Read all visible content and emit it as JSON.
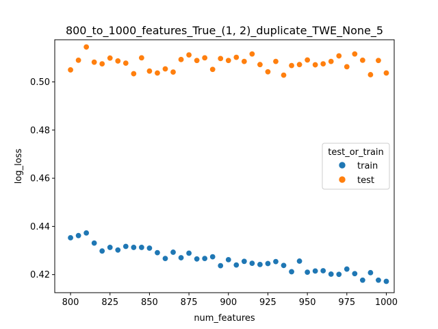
{
  "chart_data": {
    "type": "scatter",
    "title": "800_to_1000_features_True_(1, 2)_duplicate_TWE_None_5",
    "xlabel": "num_features",
    "ylabel": "log_loss",
    "xlim": [
      790,
      1005
    ],
    "ylim": [
      0.4125,
      0.5175
    ],
    "xticks": [
      800,
      825,
      850,
      875,
      900,
      925,
      950,
      975,
      1000
    ],
    "yticks": [
      0.42,
      0.44,
      0.46,
      0.48,
      0.5
    ],
    "ytick_labels": [
      "0.42",
      "0.44",
      "0.46",
      "0.48",
      "0.50"
    ],
    "grid": false,
    "legend": {
      "title": "test_or_train",
      "placement": "center-right"
    },
    "x": [
      800,
      805,
      810,
      815,
      820,
      825,
      830,
      835,
      840,
      845,
      850,
      855,
      860,
      865,
      870,
      875,
      880,
      885,
      890,
      895,
      900,
      905,
      910,
      915,
      920,
      925,
      930,
      935,
      940,
      945,
      950,
      955,
      960,
      965,
      970,
      975,
      980,
      985,
      990,
      995,
      1000
    ],
    "series": [
      {
        "name": "train",
        "color": "#1f77b4",
        "values": [
          0.4353,
          0.4362,
          0.4373,
          0.4331,
          0.4298,
          0.4313,
          0.4302,
          0.4317,
          0.4313,
          0.4313,
          0.431,
          0.4291,
          0.4267,
          0.4293,
          0.427,
          0.4289,
          0.4265,
          0.4267,
          0.4274,
          0.4237,
          0.4262,
          0.424,
          0.4255,
          0.4247,
          0.4242,
          0.4246,
          0.4254,
          0.4238,
          0.4212,
          0.4256,
          0.421,
          0.4215,
          0.4216,
          0.4202,
          0.4201,
          0.4223,
          0.4204,
          0.4177,
          0.4208,
          0.4177,
          0.4172
        ]
      },
      {
        "name": "test",
        "color": "#ff7f0e",
        "values": [
          0.505,
          0.509,
          0.5145,
          0.5082,
          0.5075,
          0.5099,
          0.5087,
          0.5078,
          0.5034,
          0.51,
          0.5045,
          0.5037,
          0.5054,
          0.5041,
          0.5093,
          0.5112,
          0.5089,
          0.51,
          0.5052,
          0.5097,
          0.5089,
          0.5102,
          0.5085,
          0.5116,
          0.5072,
          0.5042,
          0.5085,
          0.5028,
          0.5068,
          0.5072,
          0.5091,
          0.5071,
          0.5075,
          0.5085,
          0.5108,
          0.5063,
          0.5116,
          0.509,
          0.503,
          0.5089,
          0.5037
        ]
      }
    ]
  }
}
